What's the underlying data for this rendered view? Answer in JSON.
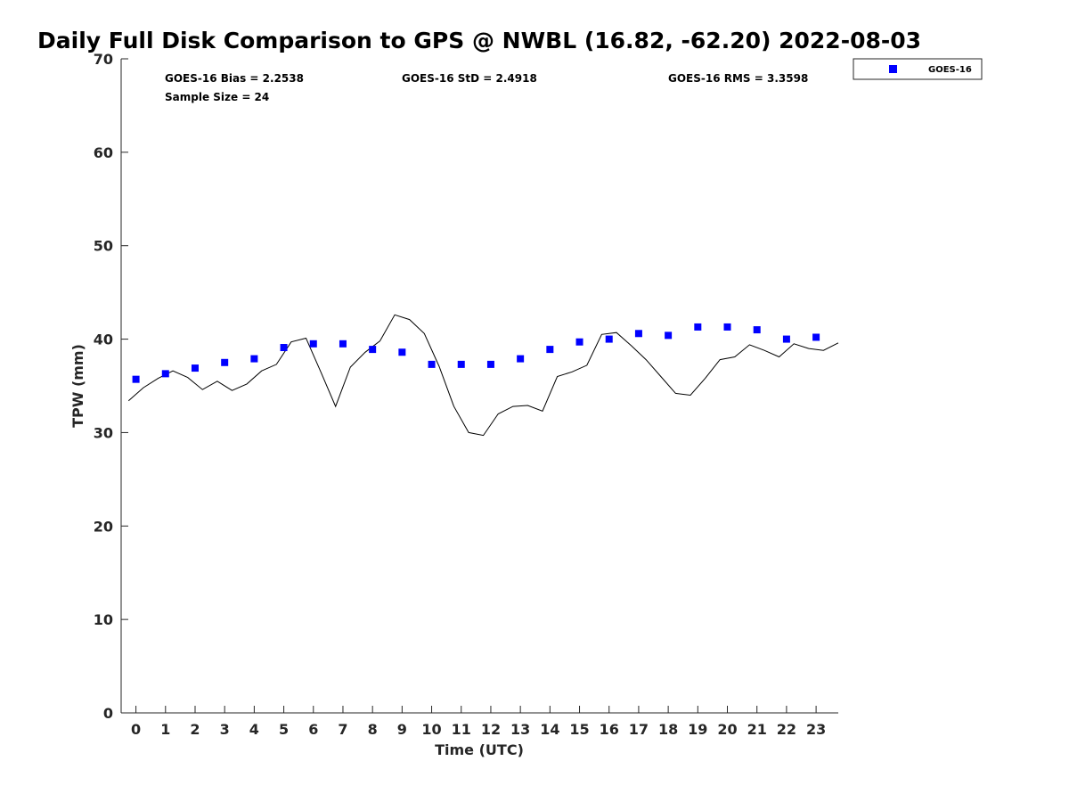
{
  "chart_data": {
    "type": "scatter",
    "title": "Daily Full Disk Comparison to GPS @ NWBL (16.82, -62.20) 2022-08-03",
    "xlabel": "Time (UTC)",
    "ylabel": "TPW (mm)",
    "xlim": [
      -0.5,
      23.75
    ],
    "ylim": [
      0,
      70
    ],
    "x_ticks": [
      0,
      1,
      2,
      3,
      4,
      5,
      6,
      7,
      8,
      9,
      10,
      11,
      12,
      13,
      14,
      15,
      16,
      17,
      18,
      19,
      20,
      21,
      22,
      23
    ],
    "y_ticks": [
      0,
      10,
      20,
      30,
      40,
      50,
      60,
      70
    ],
    "grid": false,
    "legend_position": "top-right",
    "stats": {
      "bias": "GOES-16 Bias = 2.2538",
      "std": "GOES-16 StD = 2.4918",
      "rms": "GOES-16 RMS = 3.3598",
      "sample_size": "Sample Size = 24"
    },
    "series": [
      {
        "name": "GOES-16",
        "kind": "scatter",
        "marker": "square",
        "color": "#0000ff",
        "x": [
          0,
          1,
          2,
          3,
          4,
          5,
          6,
          7,
          8,
          9,
          10,
          11,
          12,
          13,
          14,
          15,
          16,
          17,
          18,
          19,
          20,
          21,
          22,
          23
        ],
        "y": [
          35.7,
          36.3,
          36.9,
          37.5,
          37.9,
          39.1,
          39.5,
          39.5,
          38.9,
          38.6,
          37.3,
          37.3,
          37.3,
          37.9,
          38.9,
          39.7,
          40.0,
          40.6,
          40.4,
          41.3,
          41.3,
          41.0,
          40.0,
          40.2
        ]
      },
      {
        "kind": "line",
        "color": "#000000",
        "x": [
          -0.25,
          0.25,
          0.75,
          1.25,
          1.75,
          2.25,
          2.75,
          3.25,
          3.75,
          4.25,
          4.75,
          5.25,
          5.75,
          6.25,
          6.75,
          7.25,
          7.75,
          8.25,
          8.75,
          9.25,
          9.75,
          10.25,
          10.75,
          11.25,
          11.75,
          12.25,
          12.75,
          13.25,
          13.75,
          14.25,
          14.75,
          15.25,
          15.75,
          16.25,
          16.75,
          17.25,
          17.75,
          18.25,
          18.75,
          19.25,
          19.75,
          20.25,
          20.75,
          21.25,
          21.75,
          22.25,
          22.75,
          23.25,
          23.75
        ],
        "y": [
          33.4,
          34.8,
          35.8,
          36.6,
          35.9,
          34.6,
          35.5,
          34.5,
          35.2,
          36.6,
          37.3,
          39.7,
          40.1,
          36.5,
          32.8,
          37.0,
          38.6,
          39.8,
          42.6,
          42.1,
          40.6,
          37.1,
          32.8,
          30.0,
          29.7,
          32.0,
          32.8,
          32.9,
          32.3,
          36.0,
          36.5,
          37.2,
          40.5,
          40.7,
          39.3,
          37.8,
          36.0,
          34.2,
          34.0,
          35.8,
          37.8,
          38.1,
          39.4,
          38.8,
          38.1,
          39.5,
          39.0,
          38.8,
          39.6
        ]
      }
    ]
  }
}
